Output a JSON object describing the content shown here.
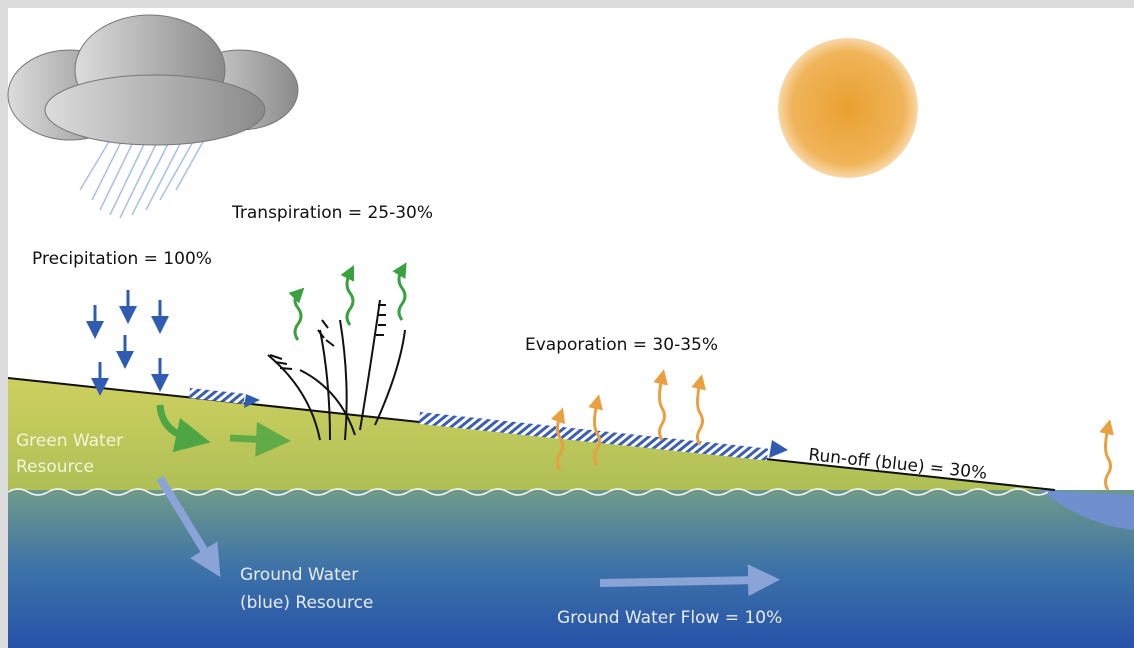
{
  "labels": {
    "transpiration": "Transpiration = 25-30%",
    "precipitation": "Precipitation = 100%",
    "evaporation": "Evaporation = 30-35%",
    "runoff": "Run-off (blue) = 30%",
    "green_water": [
      "Green Water",
      "Resource"
    ],
    "ground_water": [
      "Ground Water",
      "(blue) Resource"
    ],
    "ground_water_flow": "Ground Water Flow = 10%"
  }
}
